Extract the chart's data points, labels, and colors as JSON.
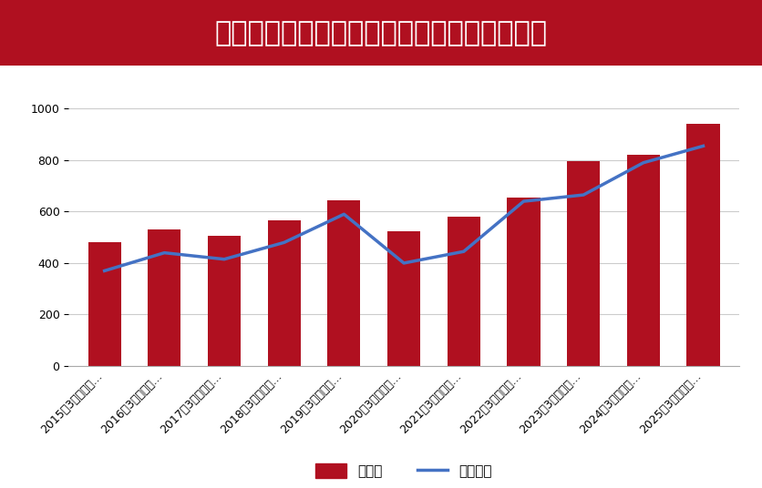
{
  "title": "上場企業の売上高・営業利益の推移（兆円）",
  "title_bg_color": "#b01020",
  "title_text_color": "#ffffff",
  "categories": [
    "2015年3月期決算...",
    "2016年3月期決算...",
    "2017年3月期決算...",
    "2018年3月期決算...",
    "2019年3月期決算...",
    "2020年3月期決算...",
    "2021年3月期決算...",
    "2022年3月期決算...",
    "2023年3月期決算...",
    "2024年3月期決算...",
    "2025年3月期決算..."
  ],
  "bar_values": [
    480,
    530,
    505,
    565,
    645,
    525,
    580,
    655,
    795,
    820,
    940
  ],
  "line_values": [
    370,
    440,
    415,
    480,
    590,
    400,
    445,
    640,
    665,
    790,
    855
  ],
  "bar_color": "#b01020",
  "line_color": "#4472c4",
  "line_width": 2.5,
  "bar_legend": "売上高",
  "line_legend": "営業利益",
  "ylim": [
    0,
    1100
  ],
  "yticks": [
    0,
    200,
    400,
    600,
    800,
    1000
  ],
  "bg_color": "#ffffff",
  "plot_bg_color": "#ffffff",
  "grid_color": "#cccccc",
  "tick_label_fontsize": 9,
  "legend_fontsize": 11,
  "title_fontsize": 22
}
